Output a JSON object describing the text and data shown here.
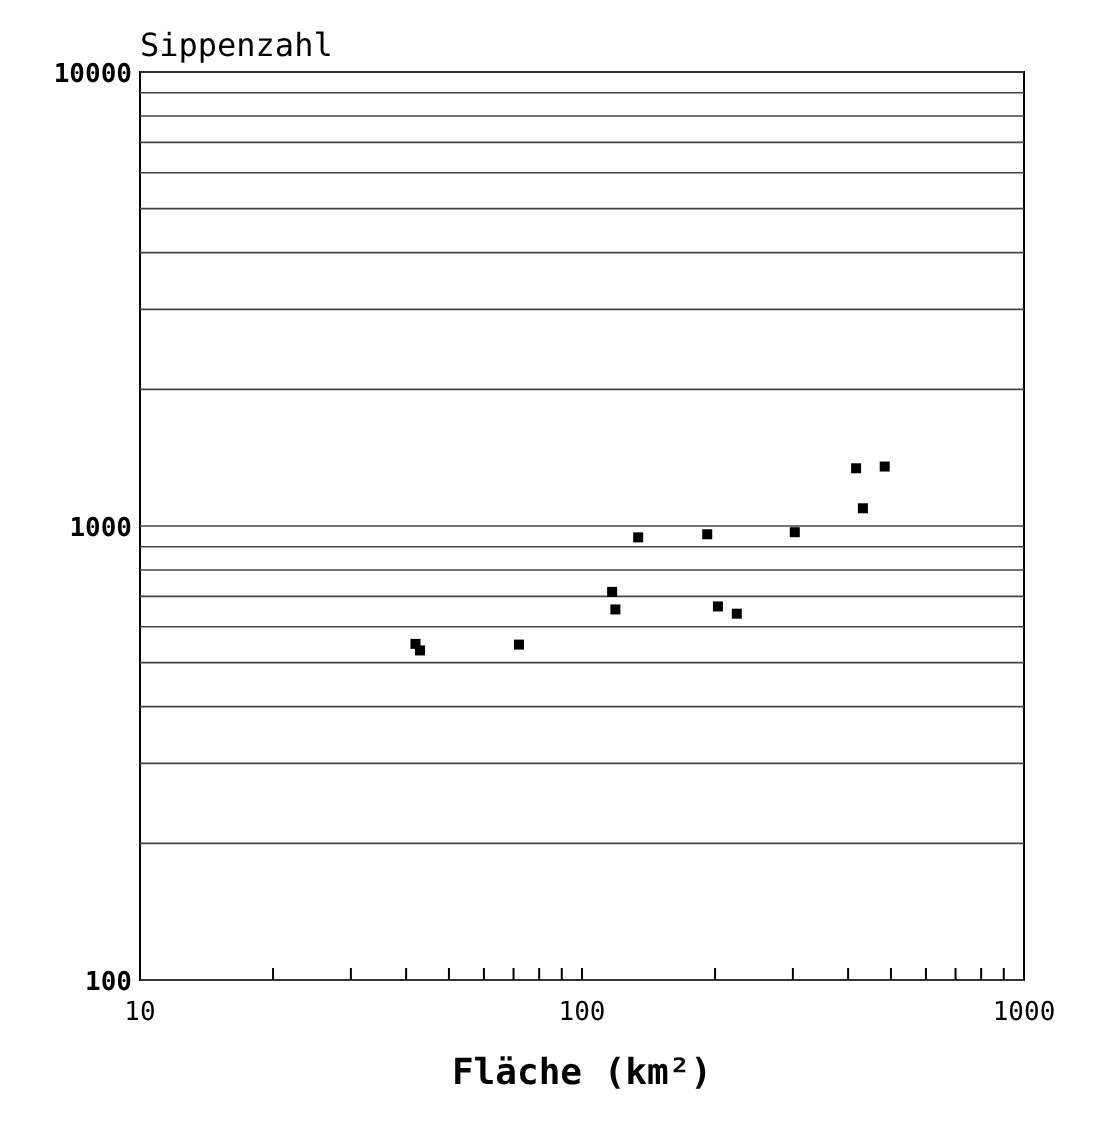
{
  "chart_data": {
    "type": "scatter",
    "ylabel": "Sippenzahl",
    "xlabel": "Fläche (km²)",
    "log": "xy",
    "grid": "y",
    "marker": "square",
    "xlim": [
      10,
      1000
    ],
    "ylim": [
      100,
      10000
    ],
    "xticks": [
      10,
      {
        "value": 20,
        "label": null
      },
      {
        "value": 30,
        "label": null
      },
      {
        "value": 40,
        "label": null
      },
      {
        "value": 50,
        "label": null
      },
      {
        "value": 60,
        "label": null
      },
      {
        "value": 70,
        "label": null
      },
      {
        "value": 80,
        "label": null
      },
      {
        "value": 90,
        "label": null
      },
      100,
      {
        "value": 200,
        "label": null
      },
      {
        "value": 300,
        "label": null
      },
      {
        "value": 400,
        "label": null
      },
      {
        "value": 500,
        "label": null
      },
      {
        "value": 600,
        "label": null
      },
      {
        "value": 700,
        "label": null
      },
      {
        "value": 800,
        "label": null
      },
      {
        "value": 900,
        "label": null
      },
      1000
    ],
    "yticks": [
      100,
      {
        "value": 200,
        "label": null
      },
      {
        "value": 300,
        "label": null
      },
      {
        "value": 400,
        "label": null
      },
      {
        "value": 500,
        "label": null
      },
      {
        "value": 600,
        "label": null
      },
      {
        "value": 700,
        "label": null
      },
      {
        "value": 800,
        "label": null
      },
      {
        "value": 900,
        "label": null
      },
      1000,
      {
        "value": 2000,
        "label": null
      },
      {
        "value": 3000,
        "label": null
      },
      {
        "value": 4000,
        "label": null
      },
      {
        "value": 5000,
        "label": null
      },
      {
        "value": 6000,
        "label": null
      },
      {
        "value": 7000,
        "label": null
      },
      {
        "value": 8000,
        "label": null
      },
      {
        "value": 9000,
        "label": null
      },
      10000
    ],
    "series": [
      {
        "color": "#000000",
        "x": [
          42,
          43,
          72,
          117,
          119,
          134,
          192,
          203,
          224,
          303,
          417,
          484,
          432
        ],
        "values": [
          550,
          532,
          548,
          716,
          655,
          944,
          959,
          665,
          641,
          969,
          1340,
          1352,
          1094
        ]
      }
    ]
  }
}
